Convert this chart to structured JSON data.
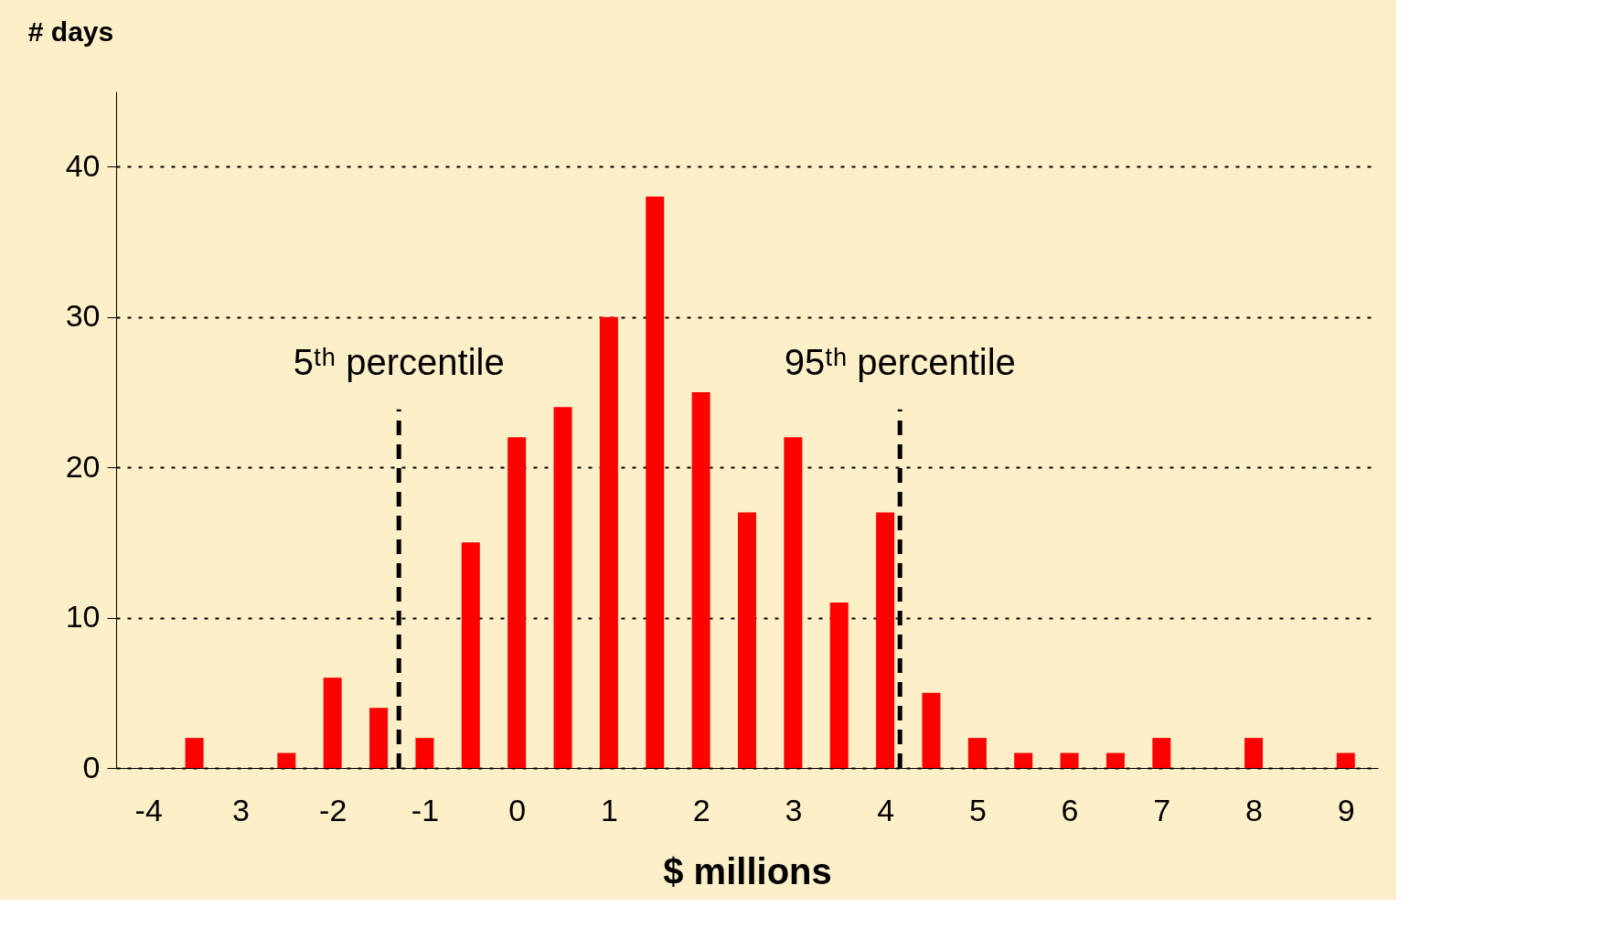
{
  "chart_data": {
    "type": "bar",
    "xlabel": "$ millions",
    "ylabel": "# days",
    "x": [
      -3.5,
      -2.5,
      -2,
      -1.5,
      -1,
      -0.5,
      0,
      0.5,
      1,
      1.5,
      2,
      2.5,
      3,
      3.5,
      4,
      4.5,
      5,
      5.5,
      6,
      6.5,
      7,
      8,
      9
    ],
    "values": [
      2,
      1,
      6,
      4,
      2,
      15,
      22,
      24,
      30,
      38,
      25,
      17,
      22,
      11,
      17,
      5,
      2,
      1,
      1,
      1,
      2,
      2,
      1
    ],
    "color": "#ff0000",
    "xlim": [
      -4.3,
      9.3
    ],
    "xticks": [
      -4,
      {
        "value": -3,
        "label": "3"
      },
      -2,
      -1,
      0,
      1,
      2,
      3,
      4,
      5,
      6,
      7,
      8,
      9
    ],
    "ylim": [
      0,
      45
    ],
    "yticks": [
      0,
      10,
      20,
      30,
      40
    ],
    "grid": "y",
    "ref_lines": [
      {
        "axis": "x",
        "value": -1.28,
        "label": "5ᵗʰ percentile",
        "line_style": "dashed",
        "color": "#000000"
      },
      {
        "axis": "x",
        "value": 4.16,
        "label": "95ᵗʰ percentile",
        "line_style": "dashed",
        "color": "#000000"
      }
    ]
  }
}
